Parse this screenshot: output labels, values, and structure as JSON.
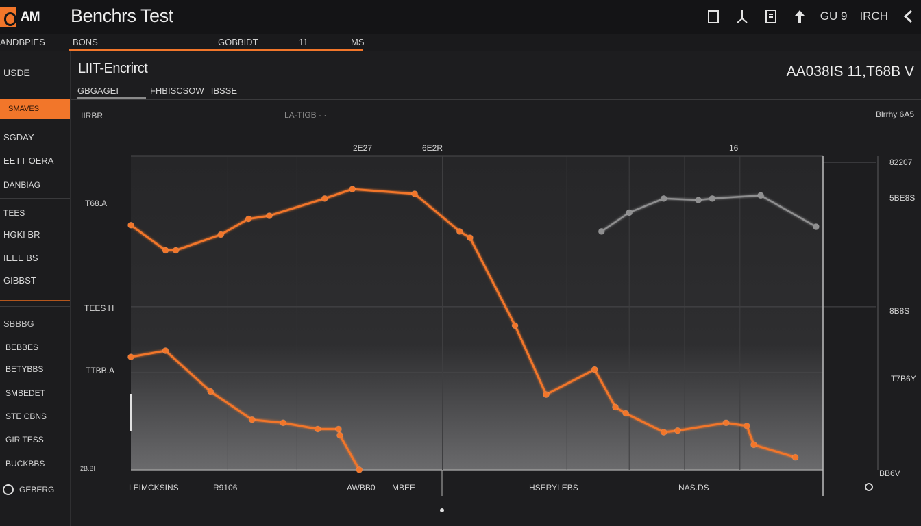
{
  "header": {
    "logo_text": "AM",
    "title": "Benchrs Test",
    "tools": [
      {
        "icon": "clipboard-icon"
      },
      {
        "icon": "share-icon"
      },
      {
        "icon": "document-icon"
      },
      {
        "icon": "pin-icon"
      },
      {
        "label": "GU 9"
      },
      {
        "label": "IRCH"
      },
      {
        "icon": "back-arrow-icon"
      }
    ]
  },
  "tabbar": {
    "left_label": "ANDBPIES",
    "tabs": [
      "BONS",
      "GOBBIDT",
      "11",
      "MS"
    ]
  },
  "sidebar": {
    "header": "USDE",
    "items": [
      "SMAVES",
      "SGDAY",
      "EETT OERA",
      "DANBIAG",
      "TEES",
      "HGKI BR",
      "IEEE BS",
      "GIBBST",
      "SBBBG",
      "BEBBES",
      "BETYBBS",
      "SMBEDET",
      "STE CBNS",
      "GIR TESS",
      "BUCKBBS"
    ],
    "active_index": 0,
    "footer": "GEBERG"
  },
  "panel": {
    "title": "LIIT-Encrirct",
    "tabs": [
      "GBGAGEI",
      "FHBISCSOW",
      "IBSSE"
    ],
    "stat": "AA038IS  11,T68B V",
    "legend_left": "IIRBR",
    "legend_mid": "LA-TIGB  ·  ·",
    "legend_right": "Blrrhy  6A5"
  },
  "chart_data": {
    "type": "line",
    "title": "",
    "xlabel": "",
    "ylabel": "",
    "top_annotations": [
      "2E27",
      "6E2R",
      "16"
    ],
    "y_left_labels": [
      "T68.A",
      "TEES H",
      "TTBB.A",
      "2B.BI"
    ],
    "y_right_labels": [
      "82207",
      "5BE8S",
      "8B8S",
      "T7B6Y",
      "BB6V"
    ],
    "x_labels": [
      "LEIMCKSINS",
      "R9106",
      "AWBB0",
      "MBEE",
      "HSERYLEBS",
      "NAS.DS"
    ],
    "x_range": [
      0,
      100
    ],
    "y_range": [
      0,
      100
    ],
    "grid": true,
    "series": [
      {
        "color": "#f2762a",
        "points": [
          [
            0,
            78
          ],
          [
            5,
            70
          ],
          [
            6.5,
            70
          ],
          [
            13,
            75
          ],
          [
            17,
            80
          ],
          [
            20,
            81
          ],
          [
            28,
            86.5
          ],
          [
            32,
            89.5
          ],
          [
            41,
            88
          ],
          [
            47.5,
            76
          ],
          [
            49,
            74
          ],
          [
            55.5,
            46
          ],
          [
            60,
            24
          ],
          [
            67,
            32
          ],
          [
            70,
            20
          ],
          [
            71.5,
            18
          ],
          [
            77,
            12
          ],
          [
            79,
            12.5
          ],
          [
            86,
            15
          ],
          [
            89,
            14
          ],
          [
            90,
            8
          ],
          [
            96,
            4
          ]
        ]
      },
      {
        "color": "#f2762a",
        "points": [
          [
            0,
            36
          ],
          [
            5,
            38
          ],
          [
            11.5,
            25
          ],
          [
            17.5,
            16
          ],
          [
            22,
            15
          ],
          [
            27,
            13
          ],
          [
            30,
            13
          ],
          [
            30.2,
            11
          ],
          [
            33,
            0
          ]
        ]
      },
      {
        "color": "#8f8f90",
        "points": [
          [
            68,
            76
          ],
          [
            72,
            82
          ],
          [
            77,
            86.5
          ],
          [
            82,
            86
          ],
          [
            84,
            86.5
          ],
          [
            91,
            87.5
          ],
          [
            99,
            77.5
          ]
        ]
      }
    ]
  },
  "colors": {
    "accent": "#f2762a",
    "background": "#1b1b1d",
    "panel": "#1d1d1f",
    "grey_series": "#8f8f90"
  }
}
